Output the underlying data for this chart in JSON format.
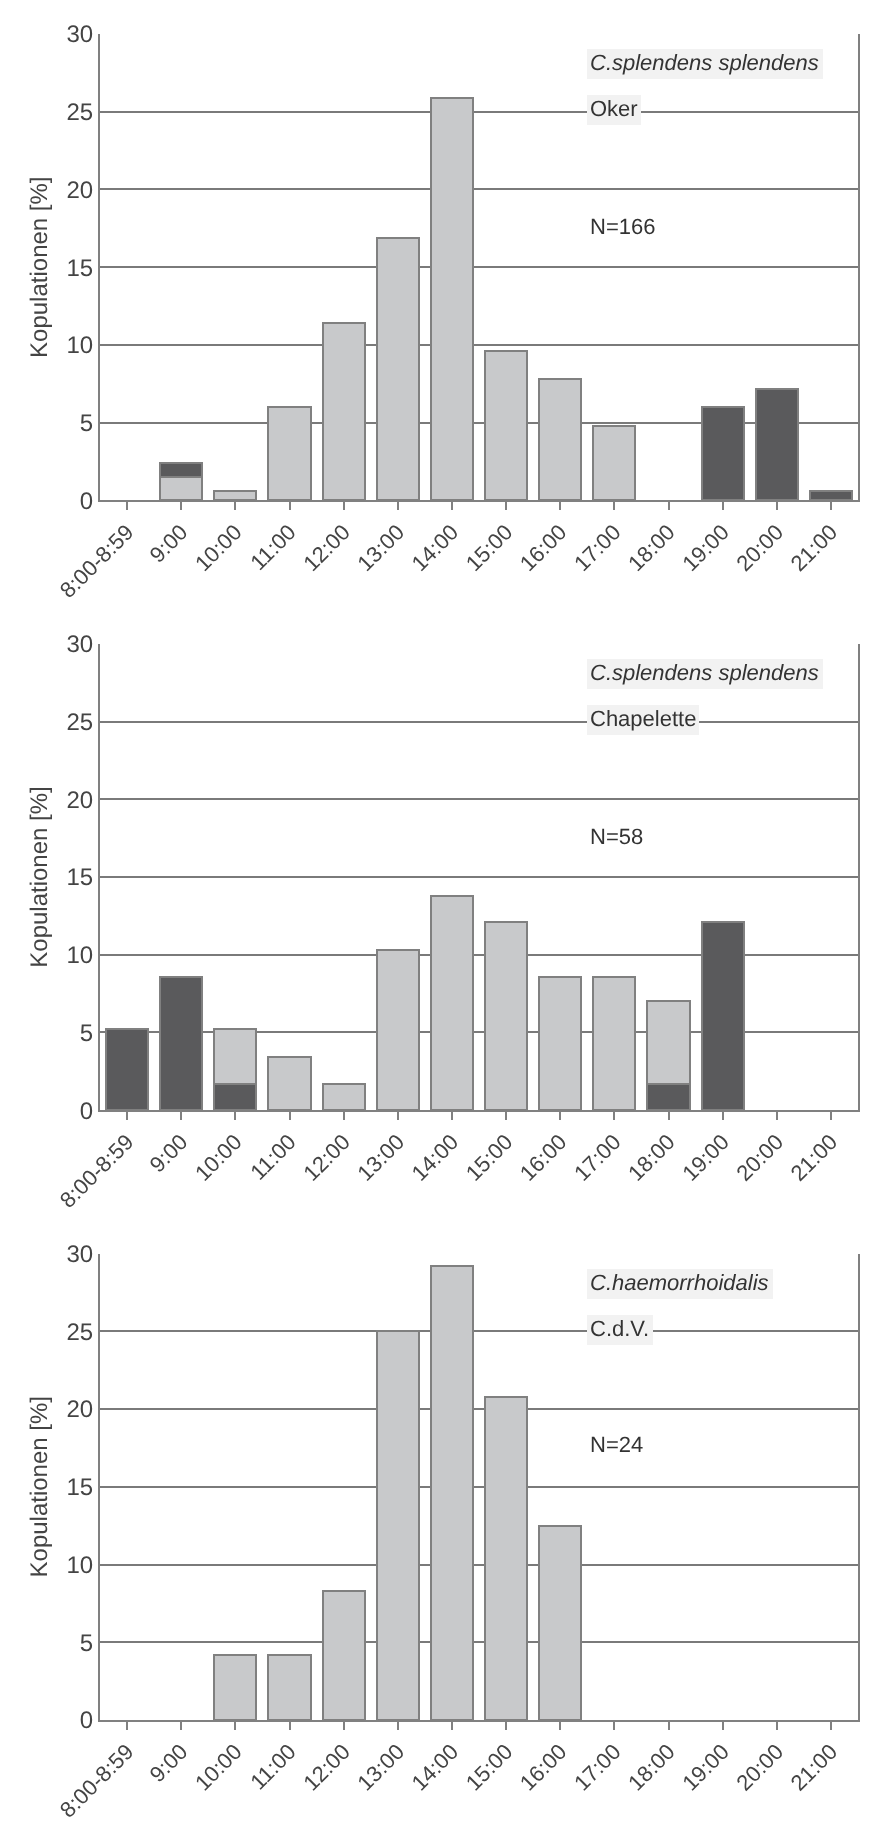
{
  "chart_data": [
    {
      "type": "bar",
      "stacked": true,
      "ylabel": "Kopulationen [%]",
      "categories": [
        "8:00-8:59",
        "9:00",
        "10:00",
        "11:00",
        "12:00",
        "13:00",
        "14:00",
        "15:00",
        "16:00",
        "17:00",
        "18:00",
        "19:00",
        "20:00",
        "21:00"
      ],
      "ylim": [
        0,
        30
      ],
      "yticks": [
        0,
        5,
        10,
        15,
        20,
        25,
        30
      ],
      "grid": "y",
      "annotations": [
        "C.splendens splendens",
        "Oker",
        "N=166"
      ],
      "series": [
        {
          "color": "#c8c9cb",
          "values": [
            null,
            1.5,
            0.6,
            6.0,
            11.4,
            16.9,
            25.9,
            9.6,
            7.8,
            4.8,
            null,
            null,
            null,
            null
          ]
        },
        {
          "color": "#5a5a5c",
          "values": [
            null,
            0.9,
            null,
            null,
            null,
            null,
            null,
            null,
            null,
            null,
            null,
            6.0,
            7.2,
            0.6
          ]
        }
      ]
    },
    {
      "type": "bar",
      "stacked": true,
      "ylabel": "Kopulationen [%]",
      "categories": [
        "8:00-8:59",
        "9:00",
        "10:00",
        "11:00",
        "12:00",
        "13:00",
        "14:00",
        "15:00",
        "16:00",
        "17:00",
        "18:00",
        "19:00",
        "20:00",
        "21:00"
      ],
      "ylim": [
        0,
        30
      ],
      "yticks": [
        0,
        5,
        10,
        15,
        20,
        25,
        30
      ],
      "grid": "y",
      "annotations": [
        "C.splendens splendens",
        "Chapelette",
        "N=58"
      ],
      "series": [
        {
          "color": "#5a5a5c",
          "values": [
            5.2,
            8.6,
            1.7,
            null,
            null,
            null,
            null,
            null,
            null,
            null,
            1.7,
            12.1,
            null,
            null
          ]
        },
        {
          "color": "#c8c9cb",
          "values": [
            null,
            null,
            3.5,
            3.4,
            1.7,
            10.3,
            13.8,
            12.1,
            8.6,
            8.6,
            5.3,
            null,
            null,
            null
          ]
        }
      ]
    },
    {
      "type": "bar",
      "stacked": true,
      "ylabel": "Kopulationen [%]",
      "categories": [
        "8:00-8:59",
        "9:00",
        "10:00",
        "11:00",
        "12:00",
        "13:00",
        "14:00",
        "15:00",
        "16:00",
        "17:00",
        "18:00",
        "19:00",
        "20:00",
        "21:00"
      ],
      "ylim": [
        0,
        30
      ],
      "yticks": [
        0,
        5,
        10,
        15,
        20,
        25,
        30
      ],
      "grid": "y",
      "annotations": [
        "C.haemorrhoidalis",
        "C.d.V.",
        "N=24"
      ],
      "series": [
        {
          "color": "#c8c9cb",
          "values": [
            null,
            null,
            4.2,
            4.2,
            8.3,
            25.0,
            29.2,
            20.8,
            12.5,
            null,
            null,
            null,
            null,
            null
          ]
        }
      ]
    }
  ]
}
